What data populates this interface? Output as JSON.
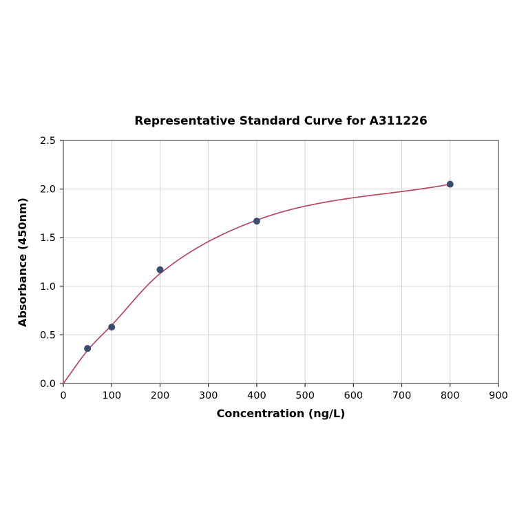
{
  "chart_data": {
    "type": "scatter",
    "title": "Representative Standard Curve for A311226",
    "xlabel": "Concentration (ng/L)",
    "ylabel": "Absorbance (450nm)",
    "xlim": [
      0,
      900
    ],
    "ylim": [
      0.0,
      2.5
    ],
    "grid": true,
    "legend": "none",
    "x_ticks": [
      0,
      100,
      200,
      300,
      400,
      500,
      600,
      700,
      800,
      900
    ],
    "x_tick_labels": [
      "0",
      "100",
      "200",
      "300",
      "400",
      "500",
      "600",
      "700",
      "800",
      "900"
    ],
    "y_ticks": [
      0.0,
      0.5,
      1.0,
      1.5,
      2.0,
      2.5
    ],
    "y_tick_labels": [
      "0.0",
      "0.5",
      "1.0",
      "1.5",
      "2.0",
      "2.5"
    ],
    "series": [
      {
        "name": "standard-points",
        "type": "scatter",
        "x": [
          50,
          100,
          200,
          400,
          800
        ],
        "y": [
          0.36,
          0.58,
          1.17,
          1.67,
          2.05
        ]
      },
      {
        "name": "fitted-curve",
        "type": "line",
        "x": [
          0,
          50,
          100,
          200,
          400,
          800
        ],
        "y": [
          0.0,
          0.34,
          0.6,
          1.13,
          1.68,
          2.05
        ]
      }
    ],
    "colors": {
      "curve": "#b5485f",
      "points": "#3b4c70",
      "grid": "#cccccc",
      "spine": "#4d4d4d",
      "tick": "#262626",
      "background": "#ffffff"
    }
  }
}
